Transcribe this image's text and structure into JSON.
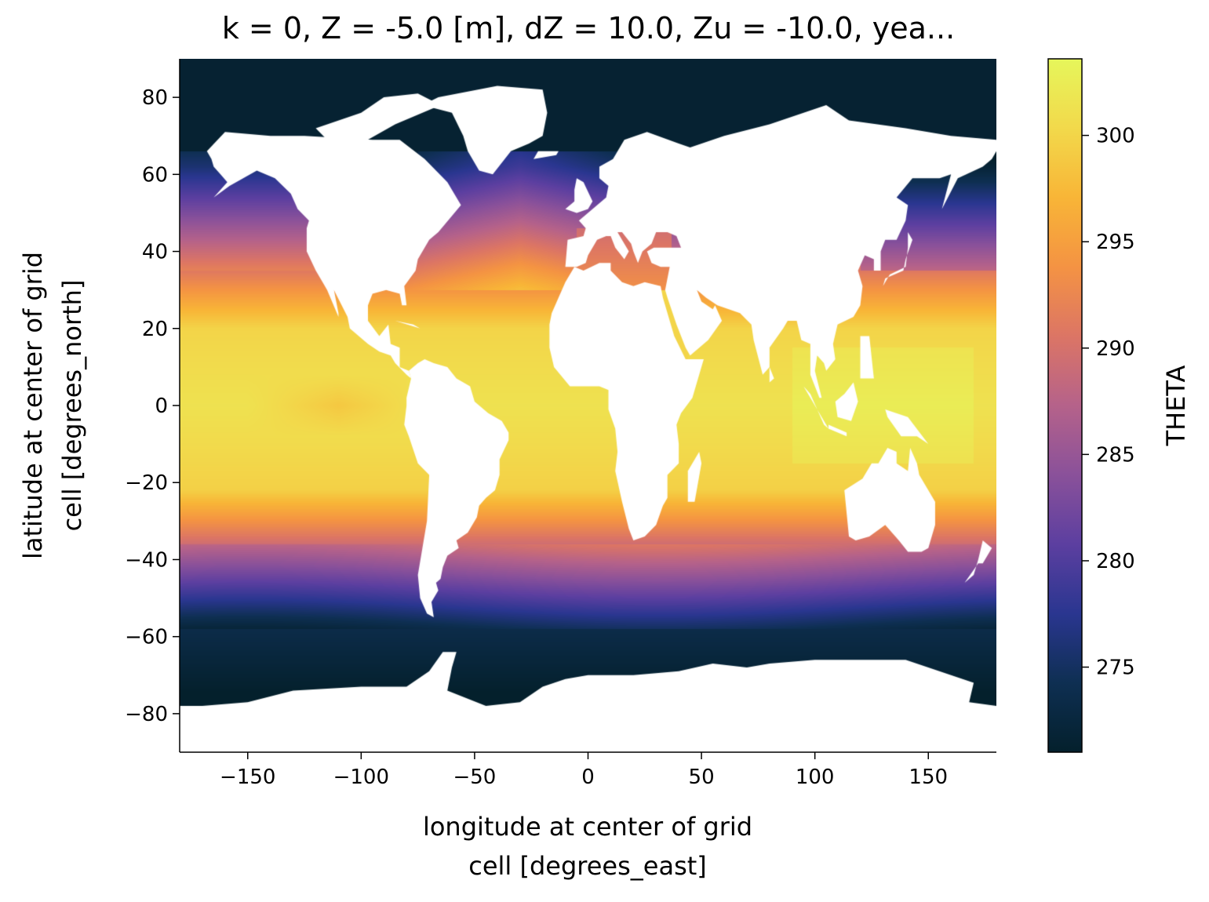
{
  "chart_data": {
    "type": "heatmap",
    "title": "k = 0, Z = -5.0 [m], dZ = 10.0, Zu = -10.0, yea...",
    "xlabel_lines": [
      "longitude at center of grid",
      "cell [degrees_east]"
    ],
    "ylabel_lines": [
      "latitude at center of grid",
      "cell [degrees_north]"
    ],
    "xlim": [
      -180,
      180
    ],
    "ylim": [
      -90,
      90
    ],
    "xticks": [
      -150,
      -100,
      -50,
      0,
      50,
      100,
      150
    ],
    "yticks": [
      -80,
      -60,
      -40,
      -20,
      0,
      20,
      40,
      60,
      80
    ],
    "xtick_labels": [
      "−150",
      "−100",
      "−50",
      "0",
      "50",
      "100",
      "150"
    ],
    "ytick_labels": [
      "−80",
      "−60",
      "−40",
      "−20",
      "0",
      "20",
      "40",
      "60",
      "80"
    ],
    "colorbar": {
      "label": "THETA",
      "range": [
        271,
        303.6
      ],
      "ticks": [
        275,
        280,
        285,
        290,
        295,
        300
      ],
      "tick_labels": [
        "275",
        "280",
        "285",
        "290",
        "295",
        "300"
      ],
      "colormap": "thermal",
      "colormap_stops": [
        "#04202c",
        "#0e2f52",
        "#2a3690",
        "#5c3fa0",
        "#8a519a",
        "#b5628a",
        "#dc7565",
        "#f49343",
        "#f8b537",
        "#f2d94b",
        "#e6f65b"
      ]
    },
    "land_color": "#ffffff",
    "grid": false,
    "field_description": "Sea surface potential temperature (THETA, K): ~300-302 in tropics, ~295 subtropics, ~285 at 40-50 deg, ~272-275 polar/Southern Ocean; land masked white"
  }
}
